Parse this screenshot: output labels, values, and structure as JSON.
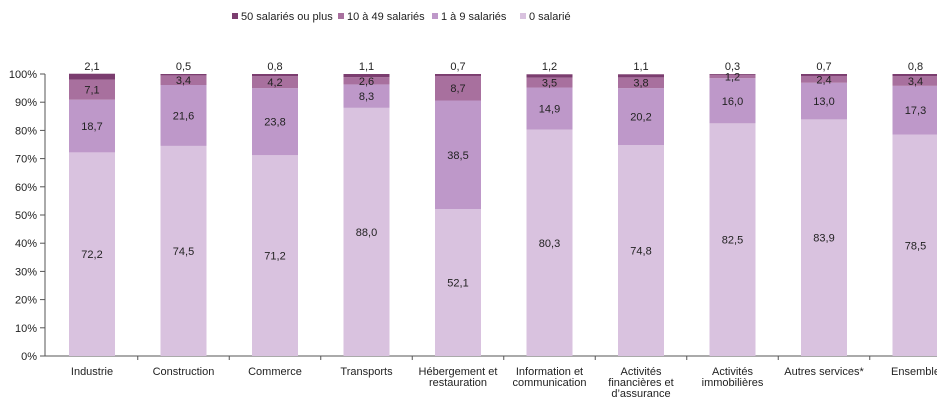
{
  "chart_data": {
    "type": "bar",
    "stacked": true,
    "percent": true,
    "categories": [
      [
        "Industrie"
      ],
      [
        "Construction"
      ],
      [
        "Commerce"
      ],
      [
        "Transports"
      ],
      [
        "Hébergement et",
        "restauration"
      ],
      [
        "Information et",
        "communication"
      ],
      [
        "Activités",
        "financières et",
        "d’assurance"
      ],
      [
        "Activités",
        "immobilières"
      ],
      [
        "Autres services*"
      ],
      [
        "Ensemble"
      ]
    ],
    "series": [
      {
        "name": "0 salarié",
        "color": "#d9c2df",
        "values": [
          72.2,
          74.5,
          71.2,
          88.0,
          52.1,
          80.3,
          74.8,
          82.5,
          83.9,
          78.5
        ],
        "labels": [
          "72,2",
          "74,5",
          "71,2",
          "88,0",
          "52,1",
          "80,3",
          "74,8",
          "82,5",
          "83,9",
          "78,5"
        ]
      },
      {
        "name": "1 à 9 salariés",
        "color": "#be98c9",
        "values": [
          18.7,
          21.6,
          23.8,
          8.3,
          38.5,
          14.9,
          20.2,
          16.0,
          13.0,
          17.3
        ],
        "labels": [
          "18,7",
          "21,6",
          "23,8",
          "8,3",
          "38,5",
          "14,9",
          "20,2",
          "16,0",
          "13,0",
          "17,3"
        ]
      },
      {
        "name": "10 à 49 salariés",
        "color": "#a8709e",
        "values": [
          7.1,
          3.4,
          4.2,
          2.6,
          8.7,
          3.5,
          3.8,
          1.2,
          2.4,
          3.4
        ],
        "labels": [
          "7,1",
          "3,4",
          "4,2",
          "2,6",
          "8,7",
          "3,5",
          "3,8",
          "1,2",
          "2,4",
          "3,4"
        ]
      },
      {
        "name": "50 salariés ou plus",
        "color": "#7b3d6f",
        "values": [
          2.1,
          0.5,
          0.8,
          1.1,
          0.7,
          1.2,
          1.1,
          0.3,
          0.7,
          0.8
        ],
        "labels": [
          "2,1",
          "0,5",
          "0,8",
          "1,1",
          "0,7",
          "1,2",
          "1,1",
          "0,3",
          "0,7",
          "0,8"
        ]
      }
    ],
    "legend_order": [
      3,
      2,
      1,
      0
    ],
    "legend_position": "top",
    "ylim": [
      0,
      100
    ],
    "yticks": [
      "0%",
      "10%",
      "20%",
      "30%",
      "40%",
      "50%",
      "60%",
      "70%",
      "80%",
      "90%",
      "100%"
    ],
    "grid": false
  }
}
